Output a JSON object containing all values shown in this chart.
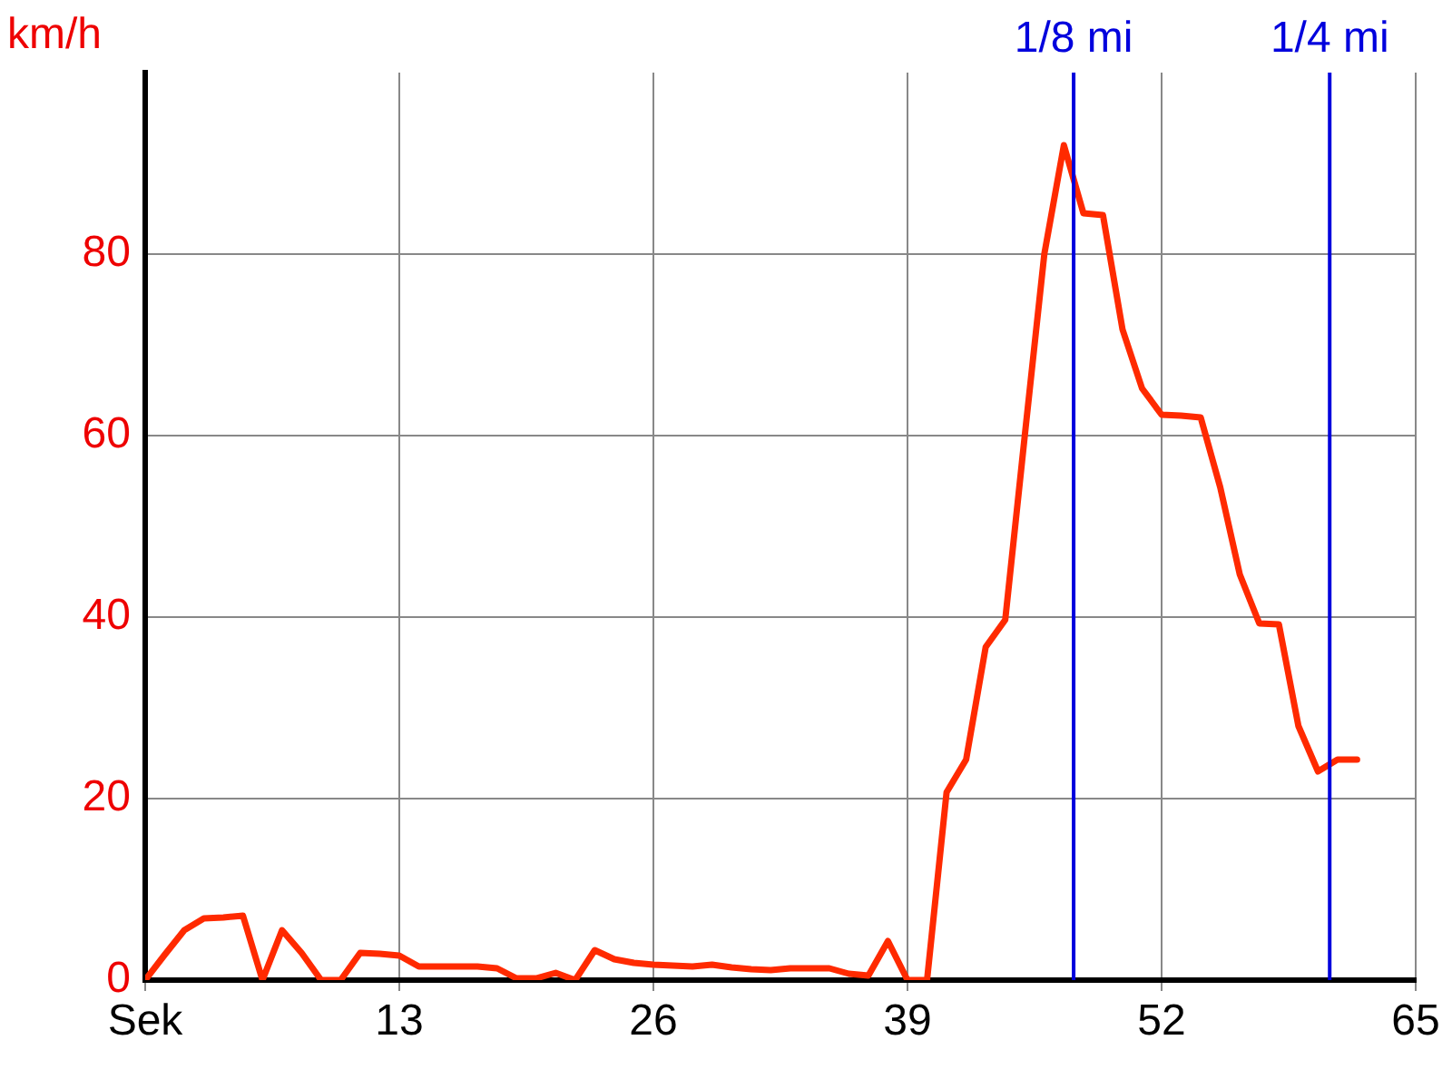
{
  "chart_data": {
    "type": "line",
    "ylabel": "km/h",
    "x": [
      0,
      1,
      2,
      3,
      4,
      5,
      6,
      7,
      8,
      9,
      10,
      11,
      12,
      13,
      14,
      15,
      16,
      17,
      18,
      19,
      20,
      21,
      22,
      23,
      24,
      25,
      26,
      27,
      28,
      29,
      30,
      31,
      32,
      33,
      34,
      35,
      36,
      37,
      38,
      39,
      40,
      41,
      42,
      43,
      44,
      45,
      46,
      47,
      48,
      49,
      50,
      51,
      52,
      53,
      54,
      55,
      56,
      57,
      58,
      59,
      60,
      61,
      62
    ],
    "series": [
      {
        "color": "#ff2a00",
        "values": [
          0,
          2.8,
          5.5,
          6.8,
          6.9,
          7.1,
          0,
          5.5,
          3,
          0,
          0,
          3,
          2.9,
          2.7,
          1.5,
          1.5,
          1.5,
          1.5,
          1.3,
          0.2,
          0.2,
          0.8,
          0,
          3.3,
          2.3,
          1.9,
          1.7,
          1.6,
          1.5,
          1.7,
          1.4,
          1.2,
          1.1,
          1.3,
          1.3,
          1.3,
          0.7,
          0.5,
          4.3,
          0,
          0,
          20.7,
          24.3,
          36.7,
          39.7,
          60,
          80,
          92,
          84.5,
          84.3,
          71.7,
          65.2,
          62.3,
          62.2,
          62,
          54.3,
          44.7,
          39.3,
          39.2,
          28,
          23,
          24.3,
          24.3
        ]
      }
    ],
    "xlim": [
      0,
      65
    ],
    "xticks": [
      {
        "value": 0,
        "label": "Sek"
      },
      13,
      26,
      39,
      52,
      65
    ],
    "ylim": [
      0,
      100
    ],
    "yticks": [
      0,
      20,
      40,
      60,
      80
    ],
    "ref_lines": [
      {
        "axis": "x",
        "value": 47.5,
        "label": "1/8 mi",
        "color": "#0000dd"
      },
      {
        "axis": "x",
        "value": 60.6,
        "label": "1/4 mi",
        "color": "#0000dd"
      }
    ],
    "grid": true,
    "legend": false,
    "marker": "none",
    "line_style": "solid"
  }
}
